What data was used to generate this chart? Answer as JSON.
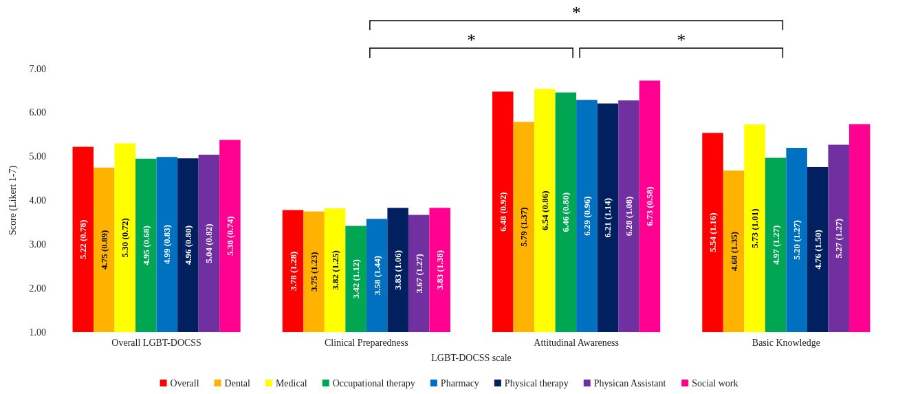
{
  "chart_data": {
    "type": "bar",
    "xlabel": "LGBT-DOCSS scale",
    "ylabel": "Score (Likert 1-7)",
    "categories": [
      "Overall LGBT-DOCSS",
      "Clinical Preparedness",
      "Attitudinal Awareness",
      "Basic Knowledge"
    ],
    "series": [
      {
        "name": "Overall",
        "color": "#ff0000",
        "values": [
          5.22,
          3.78,
          6.48,
          5.54
        ],
        "value_labels": [
          "5.22 (0.78)",
          "3.78 (1.28)",
          "6.48 (0.92)",
          "5.54 (1.16)"
        ]
      },
      {
        "name": "Dental",
        "color": "#ffb300",
        "values": [
          4.75,
          3.75,
          5.79,
          4.68
        ],
        "value_labels": [
          "4.75 (0.89)",
          "3.75 (1.23)",
          "5.79 (1.37)",
          "4.68 (1.35)"
        ]
      },
      {
        "name": "Medical",
        "color": "#ffff00",
        "values": [
          5.3,
          3.82,
          6.54,
          5.73
        ],
        "value_labels": [
          "5.30 (0.72)",
          "3.82 (1.25)",
          "6.54 (0.86)",
          "5.73 (1.01)"
        ]
      },
      {
        "name": "Occupational therapy",
        "color": "#00a651",
        "values": [
          4.95,
          3.42,
          6.46,
          4.97
        ],
        "value_labels": [
          "4.95 (0.68)",
          "3.42 (1.12)",
          "6.46 (0.80)",
          "4.97 (1.27)"
        ]
      },
      {
        "name": "Pharmacy",
        "color": "#0070c0",
        "values": [
          4.99,
          3.58,
          6.29,
          5.2
        ],
        "value_labels": [
          "4.99 (0.83)",
          "3.58 (1.44)",
          "6.29 (0.96)",
          "5.20 (1.27)"
        ]
      },
      {
        "name": "Physical therapy",
        "color": "#002060",
        "values": [
          4.96,
          3.83,
          6.21,
          4.76
        ],
        "value_labels": [
          "4.96 (0.80)",
          "3.83 (1.06)",
          "6.21 (1.14)",
          "4.76 (1.50)"
        ]
      },
      {
        "name": "Physican Assistant",
        "color": "#7030a0",
        "values": [
          5.04,
          3.67,
          6.28,
          5.27
        ],
        "value_labels": [
          "5.04 (0.82)",
          "3.67 (1.27)",
          "6.28 (1.08)",
          "5.27 (1.27)"
        ]
      },
      {
        "name": "Social work",
        "color": "#ff0090",
        "values": [
          5.38,
          3.83,
          6.73,
          5.74
        ],
        "value_labels": [
          "5.38 (0.74)",
          "3.83 (1.38)",
          "6.73 (0.58)",
          null
        ]
      }
    ],
    "ylim": [
      1,
      7
    ],
    "yticks": [
      {
        "value": 1,
        "label": "1.00"
      },
      {
        "value": 2,
        "label": "2.00"
      },
      {
        "value": 3,
        "label": "3.00"
      },
      {
        "value": 4,
        "label": "4.00"
      },
      {
        "value": 5,
        "label": "5.00"
      },
      {
        "value": 6,
        "label": "6.00"
      },
      {
        "value": 7,
        "label": "7.00"
      }
    ],
    "grid": false,
    "legend": "bottom",
    "annotations": [
      "*",
      "*",
      "*"
    ]
  }
}
